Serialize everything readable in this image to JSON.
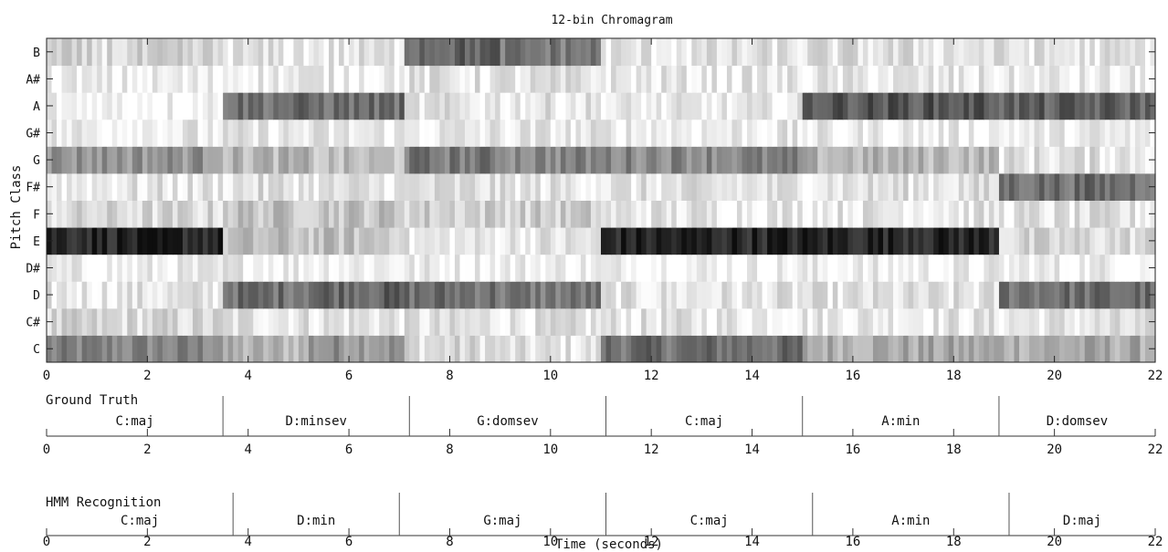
{
  "chart_data": [
    {
      "type": "heatmap",
      "title": "12-bin Chromagram",
      "xlabel": "",
      "ylabel": "Pitch Class",
      "xlim": [
        0,
        22
      ],
      "x_ticks": [
        0,
        2,
        4,
        6,
        8,
        10,
        12,
        14,
        16,
        18,
        20,
        22
      ],
      "pitch_classes": [
        "C",
        "C#",
        "D",
        "D#",
        "E",
        "F",
        "F#",
        "G",
        "G#",
        "A",
        "A#",
        "B"
      ],
      "colormap": "gray (dark = high energy)",
      "segments": [
        {
          "start": 0.0,
          "end": 3.5,
          "values": [
            0.5,
            0.15,
            0.1,
            0.05,
            0.9,
            0.15,
            0.1,
            0.45,
            0.08,
            0.05,
            0.05,
            0.15
          ]
        },
        {
          "start": 3.5,
          "end": 5.2,
          "values": [
            0.3,
            0.12,
            0.6,
            0.08,
            0.25,
            0.25,
            0.12,
            0.3,
            0.08,
            0.6,
            0.08,
            0.1
          ]
        },
        {
          "start": 5.2,
          "end": 7.1,
          "values": [
            0.45,
            0.12,
            0.65,
            0.08,
            0.25,
            0.25,
            0.1,
            0.25,
            0.08,
            0.6,
            0.08,
            0.1
          ]
        },
        {
          "start": 7.1,
          "end": 9.0,
          "values": [
            0.15,
            0.1,
            0.6,
            0.06,
            0.08,
            0.2,
            0.12,
            0.55,
            0.08,
            0.1,
            0.1,
            0.65
          ]
        },
        {
          "start": 9.0,
          "end": 11.0,
          "values": [
            0.1,
            0.1,
            0.55,
            0.06,
            0.1,
            0.2,
            0.1,
            0.5,
            0.08,
            0.1,
            0.1,
            0.55
          ]
        },
        {
          "start": 11.0,
          "end": 15.0,
          "values": [
            0.6,
            0.1,
            0.1,
            0.05,
            0.9,
            0.1,
            0.1,
            0.5,
            0.08,
            0.06,
            0.08,
            0.1
          ]
        },
        {
          "start": 15.0,
          "end": 18.9,
          "values": [
            0.35,
            0.1,
            0.1,
            0.05,
            0.9,
            0.1,
            0.12,
            0.3,
            0.06,
            0.7,
            0.08,
            0.12
          ]
        },
        {
          "start": 18.9,
          "end": 22.0,
          "values": [
            0.35,
            0.1,
            0.6,
            0.06,
            0.15,
            0.1,
            0.6,
            0.12,
            0.06,
            0.65,
            0.06,
            0.1
          ]
        }
      ]
    },
    {
      "type": "timeline",
      "label": "Ground Truth",
      "xlim": [
        0,
        22
      ],
      "x_ticks": [
        0,
        2,
        4,
        6,
        8,
        10,
        12,
        14,
        16,
        18,
        20,
        22
      ],
      "segments": [
        {
          "start": 0.0,
          "end": 3.5,
          "label": "C:maj"
        },
        {
          "start": 3.5,
          "end": 7.2,
          "label": "D:minsev"
        },
        {
          "start": 7.2,
          "end": 11.1,
          "label": "G:domsev"
        },
        {
          "start": 11.1,
          "end": 15.0,
          "label": "C:maj"
        },
        {
          "start": 15.0,
          "end": 18.9,
          "label": "A:min"
        },
        {
          "start": 18.9,
          "end": 22.0,
          "label": "D:domsev"
        }
      ]
    },
    {
      "type": "timeline",
      "label": "HMM Recognition",
      "xlabel": "Time (seconds)",
      "xlim": [
        0,
        22
      ],
      "x_ticks": [
        0,
        2,
        4,
        6,
        8,
        10,
        12,
        14,
        16,
        18,
        20,
        22
      ],
      "segments": [
        {
          "start": 0.0,
          "end": 3.7,
          "label": "C:maj"
        },
        {
          "start": 3.7,
          "end": 7.0,
          "label": "D:min"
        },
        {
          "start": 7.0,
          "end": 11.1,
          "label": "G:maj"
        },
        {
          "start": 11.1,
          "end": 15.2,
          "label": "C:maj"
        },
        {
          "start": 15.2,
          "end": 19.1,
          "label": "A:min"
        },
        {
          "start": 19.1,
          "end": 22.0,
          "label": "D:maj"
        }
      ]
    }
  ]
}
